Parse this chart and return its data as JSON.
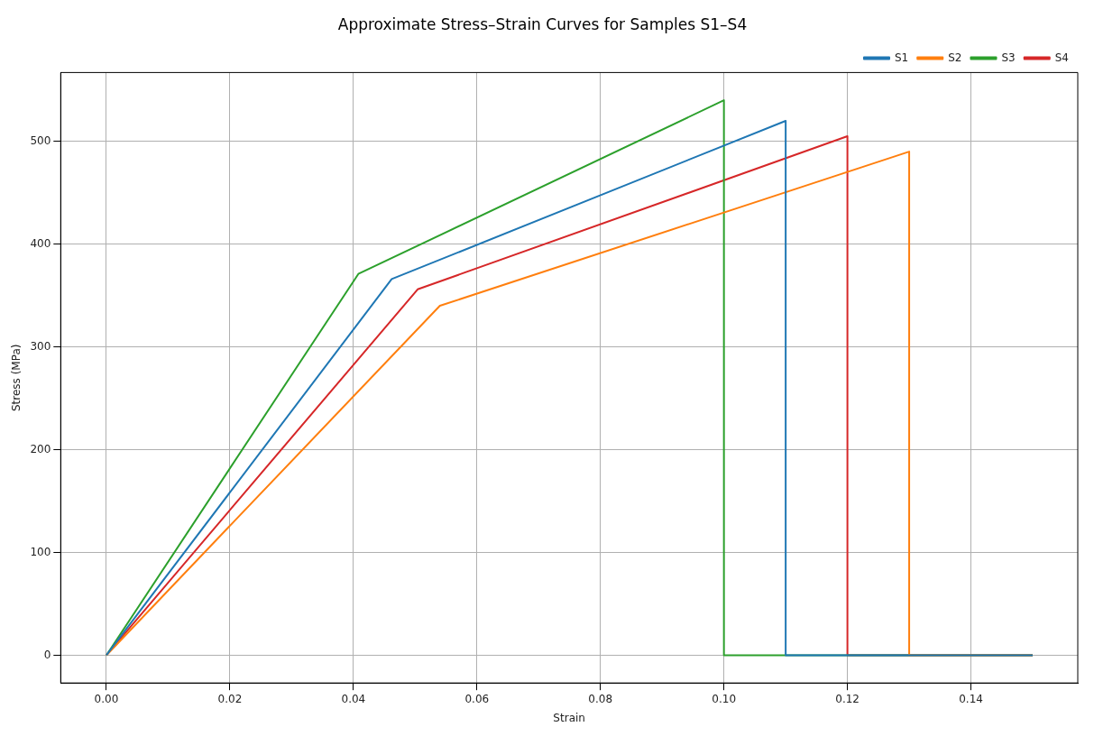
{
  "chart_data": {
    "type": "line",
    "title": "Approximate Stress–Strain Curves for Samples S1–S4",
    "xlabel": "Strain",
    "ylabel": "Stress (MPa)",
    "series": [
      {
        "name": "S1",
        "color": "#1f77b4",
        "x": [
          0,
          0.0462,
          0.11,
          0.11,
          0.15
        ],
        "values": [
          0,
          366,
          520,
          0,
          0
        ]
      },
      {
        "name": "S2",
        "color": "#ff7f0e",
        "x": [
          0,
          0.054,
          0.13,
          0.13,
          0.15
        ],
        "values": [
          0,
          340,
          490,
          0,
          0
        ]
      },
      {
        "name": "S3",
        "color": "#2ca02c",
        "x": [
          0,
          0.0408,
          0.1,
          0.1,
          0.15
        ],
        "values": [
          0,
          371,
          540,
          0,
          0
        ]
      },
      {
        "name": "S4",
        "color": "#d62728",
        "x": [
          0,
          0.0504,
          0.12,
          0.12,
          0.15
        ],
        "values": [
          0,
          356,
          505,
          0,
          0
        ]
      }
    ],
    "xlim": [
      -0.0074,
      0.1573
    ],
    "xticks": [
      {
        "value": 0,
        "label": "0.00"
      },
      {
        "value": 0.02,
        "label": "0.02"
      },
      {
        "value": 0.04,
        "label": "0.04"
      },
      {
        "value": 0.06,
        "label": "0.06"
      },
      {
        "value": 0.08,
        "label": "0.08"
      },
      {
        "value": 0.1,
        "label": "0.10"
      },
      {
        "value": 0.12,
        "label": "0.12"
      },
      {
        "value": 0.14,
        "label": "0.14"
      }
    ],
    "ylim": [
      -27,
      567
    ],
    "yticks": [
      0,
      100,
      200,
      300,
      400,
      500
    ],
    "grid": true,
    "legend": "top right",
    "marker": "none",
    "line_style": "solid"
  }
}
